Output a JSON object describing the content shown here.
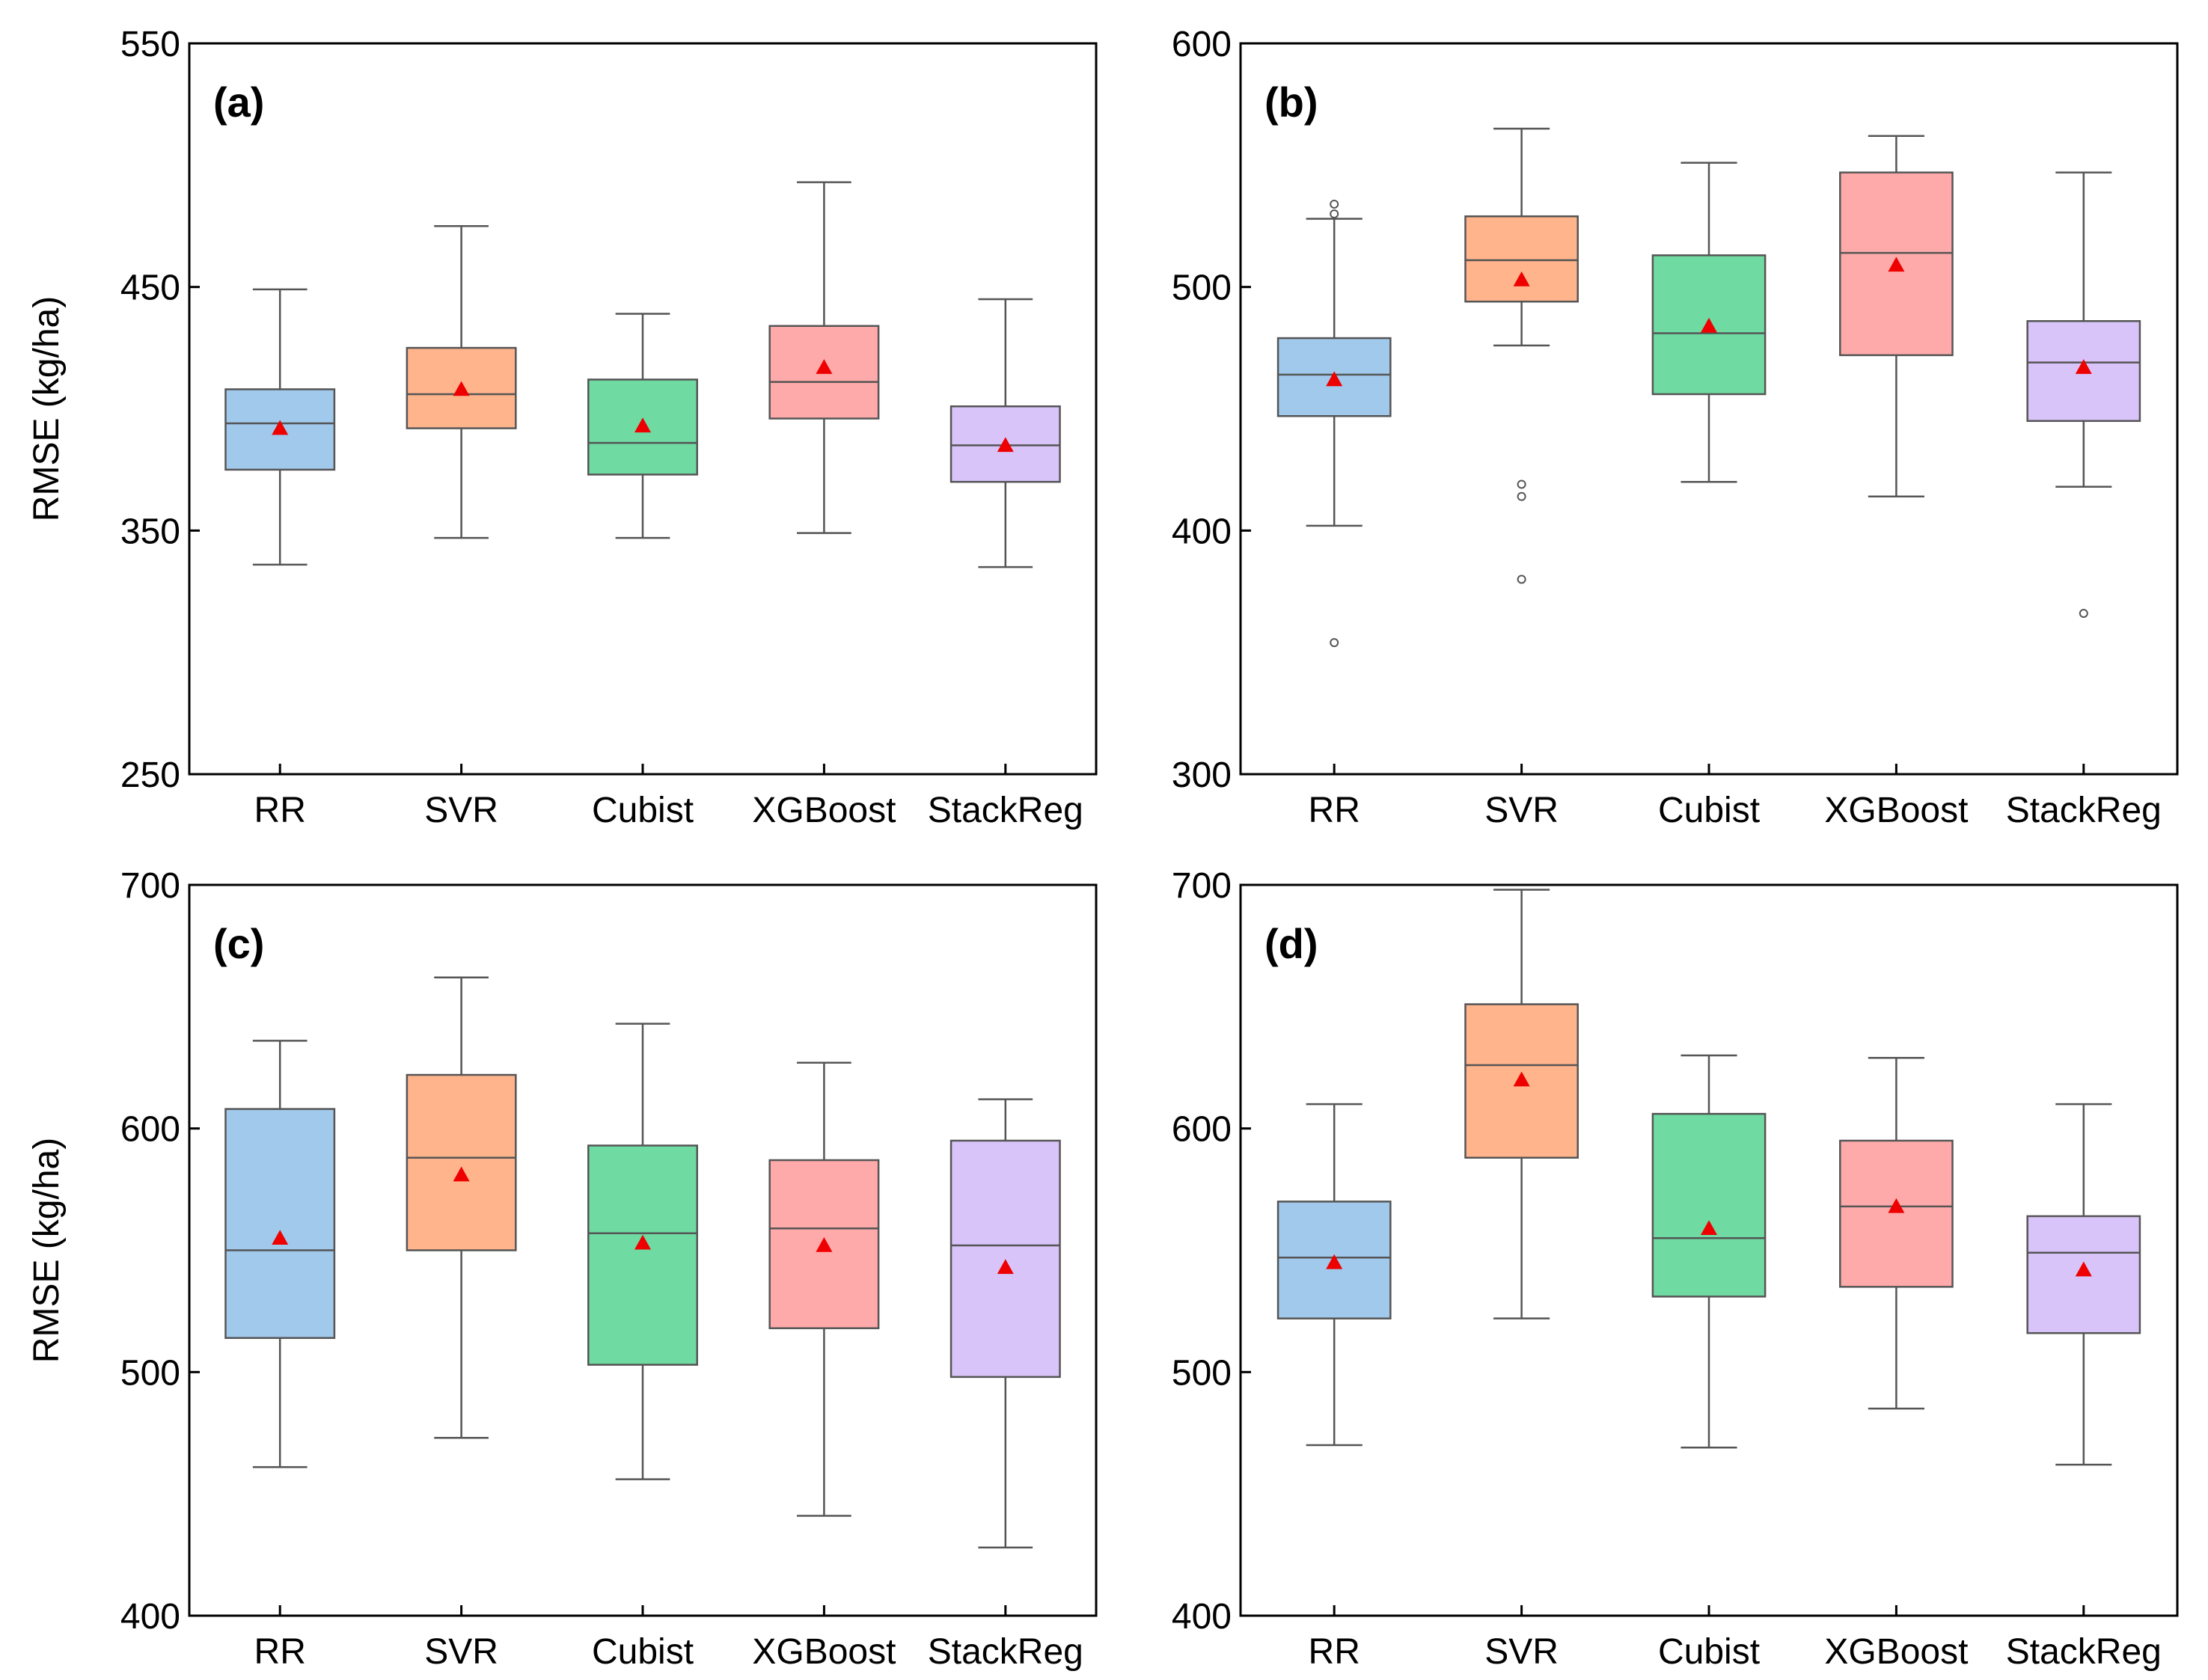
{
  "figure": {
    "colors": {
      "RR": "#a1c9ec",
      "SVR": "#ffb48c",
      "Cubist": "#6fdba2",
      "XGBoost": "#ffaaaa",
      "StackReg": "#d9c4fa",
      "mean_marker": "#ee0000",
      "outline": "#555555"
    }
  },
  "chart_data": [
    {
      "type": "box",
      "panel_label": "(a)",
      "ylabel": "RMSE (kg/ha)",
      "ylim": [
        250,
        550
      ],
      "yticks": [
        250,
        350,
        450,
        550
      ],
      "categories": [
        "RR",
        "SVR",
        "Cubist",
        "XGBoost",
        "StackReg"
      ],
      "boxes": [
        {
          "name": "RR",
          "whisker_low": 336,
          "q1": 375,
          "median": 394,
          "q3": 408,
          "whisker_high": 449,
          "mean": 392,
          "outliers": []
        },
        {
          "name": "SVR",
          "whisker_low": 347,
          "q1": 392,
          "median": 406,
          "q3": 425,
          "whisker_high": 475,
          "mean": 408,
          "outliers": []
        },
        {
          "name": "Cubist",
          "whisker_low": 347,
          "q1": 373,
          "median": 386,
          "q3": 412,
          "whisker_high": 439,
          "mean": 393,
          "outliers": []
        },
        {
          "name": "XGBoost",
          "whisker_low": 349,
          "q1": 396,
          "median": 411,
          "q3": 434,
          "whisker_high": 493,
          "mean": 417,
          "outliers": []
        },
        {
          "name": "StackReg",
          "whisker_low": 335,
          "q1": 370,
          "median": 385,
          "q3": 401,
          "whisker_high": 445,
          "mean": 385,
          "outliers": []
        }
      ]
    },
    {
      "type": "box",
      "panel_label": "(b)",
      "ylabel": "",
      "ylim": [
        300,
        600
      ],
      "yticks": [
        300,
        400,
        500,
        600
      ],
      "categories": [
        "RR",
        "SVR",
        "Cubist",
        "XGBoost",
        "StackReg"
      ],
      "boxes": [
        {
          "name": "RR",
          "whisker_low": 402,
          "q1": 447,
          "median": 464,
          "q3": 479,
          "whisker_high": 528,
          "mean": 462,
          "outliers": [
            354,
            530,
            534
          ]
        },
        {
          "name": "SVR",
          "whisker_low": 476,
          "q1": 494,
          "median": 511,
          "q3": 529,
          "whisker_high": 565,
          "mean": 503,
          "outliers": [
            380,
            414,
            419
          ]
        },
        {
          "name": "Cubist",
          "whisker_low": 420,
          "q1": 456,
          "median": 481,
          "q3": 513,
          "whisker_high": 551,
          "mean": 484,
          "outliers": []
        },
        {
          "name": "XGBoost",
          "whisker_low": 414,
          "q1": 472,
          "median": 514,
          "q3": 547,
          "whisker_high": 562,
          "mean": 509,
          "outliers": []
        },
        {
          "name": "StackReg",
          "whisker_low": 418,
          "q1": 445,
          "median": 469,
          "q3": 486,
          "whisker_high": 547,
          "mean": 467,
          "outliers": [
            366
          ]
        }
      ]
    },
    {
      "type": "box",
      "panel_label": "(c)",
      "ylabel": "RMSE (kg/ha)",
      "ylim": [
        400,
        700
      ],
      "yticks": [
        400,
        500,
        600,
        700
      ],
      "categories": [
        "RR",
        "SVR",
        "Cubist",
        "XGBoost",
        "StackReg"
      ],
      "boxes": [
        {
          "name": "RR",
          "whisker_low": 461,
          "q1": 514,
          "median": 550,
          "q3": 608,
          "whisker_high": 636,
          "mean": 555,
          "outliers": []
        },
        {
          "name": "SVR",
          "whisker_low": 473,
          "q1": 550,
          "median": 588,
          "q3": 622,
          "whisker_high": 662,
          "mean": 581,
          "outliers": []
        },
        {
          "name": "Cubist",
          "whisker_low": 456,
          "q1": 503,
          "median": 557,
          "q3": 593,
          "whisker_high": 643,
          "mean": 553,
          "outliers": []
        },
        {
          "name": "XGBoost",
          "whisker_low": 441,
          "q1": 518,
          "median": 559,
          "q3": 587,
          "whisker_high": 627,
          "mean": 552,
          "outliers": []
        },
        {
          "name": "StackReg",
          "whisker_low": 428,
          "q1": 498,
          "median": 552,
          "q3": 595,
          "whisker_high": 612,
          "mean": 543,
          "outliers": []
        }
      ]
    },
    {
      "type": "box",
      "panel_label": "(d)",
      "ylabel": "",
      "ylim": [
        400,
        700
      ],
      "yticks": [
        400,
        500,
        600,
        700
      ],
      "categories": [
        "RR",
        "SVR",
        "Cubist",
        "XGBoost",
        "StackReg"
      ],
      "boxes": [
        {
          "name": "RR",
          "whisker_low": 470,
          "q1": 522,
          "median": 547,
          "q3": 570,
          "whisker_high": 610,
          "mean": 545,
          "outliers": []
        },
        {
          "name": "SVR",
          "whisker_low": 522,
          "q1": 588,
          "median": 626,
          "q3": 651,
          "whisker_high": 698,
          "mean": 620,
          "outliers": []
        },
        {
          "name": "Cubist",
          "whisker_low": 469,
          "q1": 531,
          "median": 555,
          "q3": 606,
          "whisker_high": 630,
          "mean": 559,
          "outliers": []
        },
        {
          "name": "XGBoost",
          "whisker_low": 485,
          "q1": 535,
          "median": 568,
          "q3": 595,
          "whisker_high": 629,
          "mean": 568,
          "outliers": []
        },
        {
          "name": "StackReg",
          "whisker_low": 462,
          "q1": 516,
          "median": 549,
          "q3": 564,
          "whisker_high": 610,
          "mean": 542,
          "outliers": []
        }
      ]
    }
  ]
}
